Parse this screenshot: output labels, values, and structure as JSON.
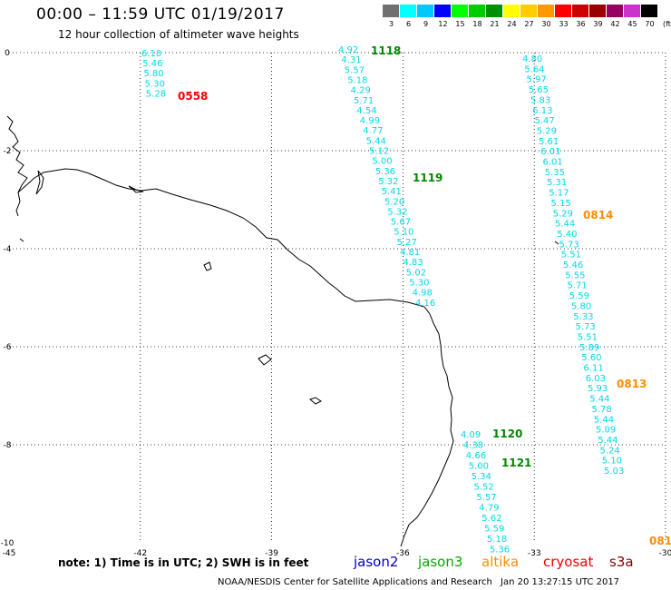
{
  "header": {
    "title": "00:00 – 11:59 UTC 01/19/2017",
    "subtitle": "12 hour collection of altimeter wave heights"
  },
  "legend": {
    "unit_label": "(ft)",
    "bins": [
      {
        "label": "3",
        "color": "#707070"
      },
      {
        "label": "6",
        "color": "#00ffff"
      },
      {
        "label": "9",
        "color": "#00c8ff"
      },
      {
        "label": "12",
        "color": "#0000ff"
      },
      {
        "label": "15",
        "color": "#00ff00"
      },
      {
        "label": "18",
        "color": "#00cc00"
      },
      {
        "label": "21",
        "color": "#009000"
      },
      {
        "label": "24",
        "color": "#ffff00"
      },
      {
        "label": "27",
        "color": "#ffcc00"
      },
      {
        "label": "30",
        "color": "#ff9900"
      },
      {
        "label": "33",
        "color": "#ff0000"
      },
      {
        "label": "36",
        "color": "#cc0000"
      },
      {
        "label": "39",
        "color": "#990000"
      },
      {
        "label": "42",
        "color": "#990066"
      },
      {
        "label": "45",
        "color": "#cc33cc"
      },
      {
        "label": "70",
        "color": "#000000"
      }
    ]
  },
  "axes": {
    "lon_ticks": [
      "-45",
      "-42",
      "-39",
      "-36",
      "-33",
      "-30"
    ],
    "lat_ticks": [
      "0",
      "-2",
      "-4",
      "-6",
      "-8",
      "-10"
    ]
  },
  "tracks": [
    {
      "satellite": "s3a",
      "time": "0558",
      "time_color": "#ff0000",
      "values": [
        "6.18",
        "5.46",
        "5.80",
        "5.30",
        "5.28"
      ]
    },
    {
      "satellite": "jason3",
      "time": "1118",
      "time_color": "#008800",
      "values": [
        "4.92",
        "4.31",
        "5.57",
        "5.18",
        "4.29",
        "5.71",
        "4.54",
        "4.99",
        "4.77",
        "5.44",
        "5.12",
        "5.00",
        "5.36",
        "5.32",
        "5.41",
        "5.20",
        "5.32",
        "5.67",
        "5.10",
        "5.27",
        "4.81",
        "4.83",
        "5.02",
        "5.30",
        "4.98",
        "4.16"
      ]
    },
    {
      "satellite": "jason3",
      "time": "1119",
      "time_color": "#008800",
      "values": []
    },
    {
      "satellite": "jason3",
      "time": "1120",
      "time_color": "#008800",
      "values": [
        "4.09",
        "4.38",
        "4.66",
        "5.00",
        "5.34",
        "5.52",
        "5.57",
        "4.79",
        "5.62",
        "5.59",
        "5.18",
        "5.36"
      ]
    },
    {
      "satellite": "jason3",
      "time": "1121",
      "time_color": "#008800",
      "values": []
    },
    {
      "satellite": "altika",
      "time": "0814",
      "time_color": "#ff8c00",
      "values": [
        "4.80",
        "5.64",
        "5.97",
        "5.65",
        "5.83",
        "6.13",
        "5.47",
        "5.29",
        "5.61",
        "6.01",
        "6.01",
        "5.35",
        "5.31",
        "5.17",
        "5.15",
        "5.29",
        "5.44",
        "5.40",
        "5.73",
        "5.51",
        "5.46",
        "5.55",
        "5.71",
        "5.59",
        "5.80",
        "5.33",
        "5.73",
        "5.51",
        "5.89",
        "5.60",
        "6.11",
        "6.03",
        "5.93",
        "5.44",
        "5.78",
        "5.44",
        "5.09",
        "5.44",
        "5.24",
        "5.10",
        "5.03"
      ]
    },
    {
      "satellite": "altika",
      "time": "0813",
      "time_color": "#ff8c00",
      "values": []
    },
    {
      "satellite": "altika",
      "time": "081",
      "time_color": "#ff8c00",
      "values": []
    }
  ],
  "note": "note:  1) Time is in UTC;  2) SWH is in feet",
  "satellites": [
    {
      "name": "jason2",
      "color": "#0000cc"
    },
    {
      "name": "jason3",
      "color": "#00aa00"
    },
    {
      "name": "altika",
      "color": "#ff8c00"
    },
    {
      "name": "cryosat",
      "color": "#ee0000"
    },
    {
      "name": "s3a",
      "color": "#880000"
    }
  ],
  "footer": {
    "credit": "NOAA/NESDIS Center for Satellite Applications and Research",
    "generated": "Jan 20 13:27:15 UTC 2017"
  }
}
